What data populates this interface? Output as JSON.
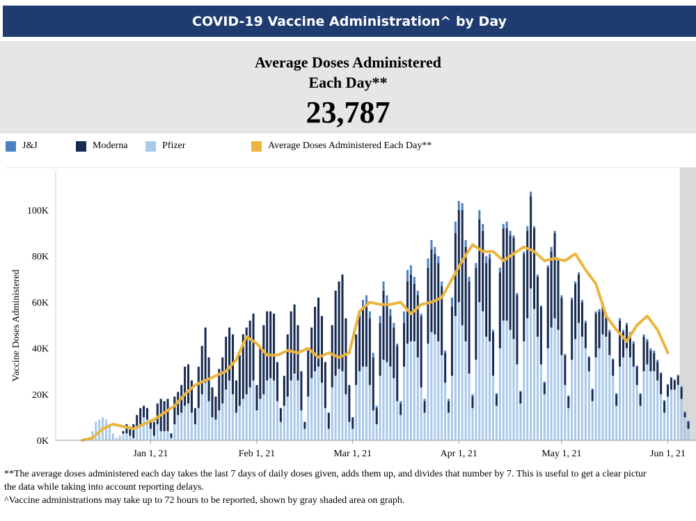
{
  "header": {
    "title": "COVID-19 Vaccine Administration^ by Day"
  },
  "kpi": {
    "label_line1": "Average Doses Administered",
    "label_line2": "Each Day**",
    "value": "23,787"
  },
  "legend": [
    {
      "label": "J&J",
      "color": "#4e80c1"
    },
    {
      "label": "Moderna",
      "color": "#172a50"
    },
    {
      "label": "Pfizer",
      "color": "#a9c8ea"
    },
    {
      "label": "Average Doses Administered Each Day**",
      "color": "#ebb53e"
    }
  ],
  "notes": {
    "line1": "**The average doses administered each day takes the last 7 days of daily doses given, adds them up, and divides that number by 7. This is useful to get a clear pictur",
    "line2": "the data while taking into account reporting delays.",
    "line3": "^Vaccine administrations may take up to 72 hours to be reported, shown by gray shaded area on graph."
  },
  "chart_data": {
    "type": "bar",
    "stacked": true,
    "title": "",
    "ylabel": "Vaccine Doses Administered",
    "xlabel": "",
    "ylim": [
      0,
      115000
    ],
    "ytick_values": [
      0,
      20000,
      40000,
      60000,
      80000,
      100000
    ],
    "ytick_labels": [
      "0K",
      "20K",
      "40K",
      "60K",
      "80K",
      "100K"
    ],
    "xtick_labels": [
      "Jan 1, 21",
      "Feb 1, 21",
      "Mar 1, 21",
      "Apr 1, 21",
      "May 1, 21",
      "Jun 1, 21"
    ],
    "xtick_day_index": [
      20,
      51,
      79,
      110,
      140,
      171
    ],
    "start_date": "Dec 12, 20",
    "reporting_delay_days": 3,
    "series_colors": {
      "pfizer": "#a9c8ea",
      "moderna": "#172a50",
      "jj": "#4e80c1",
      "avg": "#ebb53e"
    },
    "pfizer": [
      0,
      0,
      0,
      4000,
      8000,
      9000,
      10000,
      9000,
      7000,
      3000,
      1000,
      2000,
      3000,
      3000,
      2000,
      1000,
      5000,
      7000,
      10000,
      9000,
      5000,
      2000,
      7000,
      4000,
      4000,
      4000,
      1000,
      7000,
      11000,
      12000,
      15000,
      16000,
      12000,
      7000,
      14000,
      20000,
      25000,
      17000,
      10000,
      9000,
      13000,
      16000,
      22000,
      26000,
      20000,
      12000,
      15000,
      18000,
      20000,
      23000,
      26000,
      13000,
      18000,
      20000,
      26000,
      27000,
      26000,
      17000,
      8000,
      15000,
      19000,
      26000,
      29000,
      26000,
      13000,
      5000,
      19000,
      27000,
      30000,
      32000,
      25000,
      14000,
      5000,
      23000,
      28000,
      31000,
      30000,
      20000,
      8000,
      5000,
      24000,
      30000,
      32000,
      32000,
      24000,
      13000,
      7000,
      28000,
      35000,
      34000,
      32000,
      27000,
      17000,
      11000,
      32000,
      42000,
      43000,
      43000,
      36000,
      23000,
      12000,
      42000,
      47000,
      46000,
      43000,
      37000,
      25000,
      12000,
      28000,
      54000,
      60000,
      50000,
      43000,
      29000,
      14000,
      35000,
      60000,
      56000,
      45000,
      43000,
      28000,
      15000,
      40000,
      52000,
      52000,
      48000,
      44000,
      33000,
      16000,
      43000,
      53000,
      66000,
      57000,
      45000,
      33000,
      20000,
      40000,
      49000,
      53000,
      48000,
      37000,
      24000,
      14000,
      35000,
      44000,
      51000,
      45000,
      40000,
      30000,
      17000,
      36000,
      40000,
      46000,
      45000,
      37000,
      28000,
      15000,
      32000,
      36000,
      40000,
      36000,
      32000,
      24000,
      15000,
      30000,
      33000,
      30000,
      30000,
      26000,
      20000,
      12000,
      19000,
      22000,
      22000,
      24000,
      18000,
      10000,
      5000
    ],
    "moderna": [
      0,
      0,
      0,
      0,
      0,
      0,
      0,
      0,
      0,
      0,
      0,
      0,
      1000,
      4000,
      4000,
      6000,
      6000,
      7000,
      5000,
      5000,
      4000,
      6000,
      9000,
      14000,
      13000,
      14000,
      2000,
      12000,
      10000,
      12000,
      17000,
      17000,
      14000,
      7000,
      18000,
      21000,
      24000,
      19000,
      13000,
      10000,
      18000,
      20000,
      23000,
      23000,
      26000,
      14000,
      22000,
      28000,
      29000,
      29000,
      29000,
      11000,
      22000,
      30000,
      30000,
      29000,
      29000,
      17000,
      6000,
      13000,
      27000,
      30000,
      30000,
      24000,
      17000,
      3000,
      20000,
      22000,
      28000,
      30000,
      29000,
      20000,
      7000,
      27000,
      37000,
      38000,
      42000,
      33000,
      16000,
      5000,
      22000,
      24000,
      26000,
      27000,
      29000,
      23000,
      7000,
      23000,
      30000,
      25000,
      22000,
      22000,
      24000,
      5000,
      19000,
      27000,
      29000,
      25000,
      27000,
      31000,
      5000,
      33000,
      36000,
      35000,
      34000,
      30000,
      13000,
      5000,
      30000,
      36000,
      40000,
      50000,
      41000,
      40000,
      5000,
      40000,
      36000,
      35000,
      32000,
      36000,
      19000,
      5000,
      33000,
      40000,
      40000,
      41000,
      44000,
      30000,
      5000,
      38000,
      38000,
      40000,
      35000,
      26000,
      25000,
      5000,
      35000,
      33000,
      37000,
      30000,
      25000,
      13000,
      5000,
      26000,
      24000,
      21000,
      15000,
      11000,
      6000,
      5000,
      19000,
      16000,
      13000,
      9000,
      10000,
      7000,
      5000,
      20000,
      11000,
      10000,
      10000,
      10000,
      8000,
      5000,
      15000,
      10000,
      9000,
      8000,
      8000,
      9000,
      5000,
      5000,
      5000,
      4000,
      4000,
      5000,
      2000,
      3000
    ],
    "jj": [
      0,
      0,
      0,
      0,
      0,
      0,
      0,
      0,
      0,
      0,
      0,
      0,
      0,
      0,
      0,
      0,
      0,
      0,
      0,
      0,
      0,
      0,
      0,
      0,
      0,
      0,
      0,
      0,
      0,
      0,
      0,
      0,
      0,
      0,
      0,
      0,
      0,
      0,
      0,
      0,
      0,
      0,
      0,
      0,
      0,
      0,
      0,
      0,
      0,
      0,
      0,
      0,
      0,
      0,
      0,
      0,
      0,
      0,
      0,
      0,
      0,
      0,
      0,
      0,
      0,
      0,
      0,
      0,
      0,
      0,
      0,
      0,
      0,
      0,
      0,
      0,
      0,
      0,
      0,
      0,
      0,
      2000,
      3000,
      4000,
      3000,
      2000,
      1000,
      3000,
      4000,
      4000,
      3000,
      2000,
      1000,
      1000,
      5000,
      5000,
      4000,
      3000,
      2000,
      1000,
      1000,
      4000,
      4000,
      3000,
      3000,
      2000,
      1000,
      1000,
      4000,
      5000,
      4000,
      3000,
      3000,
      2000,
      1000,
      2000,
      4000,
      3000,
      3000,
      2000,
      1000,
      500,
      2000,
      2000,
      3000,
      2000,
      1000,
      1000,
      500,
      1000,
      2000,
      2000,
      1000,
      1000,
      500,
      500,
      1000,
      2000,
      1000,
      1000,
      1000,
      500,
      500,
      1000,
      1000,
      1000,
      1000,
      1000,
      500,
      500,
      1000,
      1000,
      1000,
      1000,
      1000,
      500,
      500,
      1000,
      1000,
      1000,
      1000,
      1000,
      500,
      500,
      1000,
      1000,
      1000,
      1000,
      1000,
      500,
      500,
      500,
      500,
      500,
      500,
      500,
      500,
      500
    ],
    "avg_x_day": [
      0,
      3,
      6,
      9,
      12,
      15,
      18,
      21,
      24,
      27,
      30,
      33,
      36,
      39,
      42,
      45,
      48,
      51,
      54,
      57,
      60,
      63,
      66,
      69,
      72,
      75,
      78,
      81,
      84,
      87,
      90,
      93,
      96,
      99,
      102,
      105,
      108,
      111,
      114,
      117,
      120,
      123,
      126,
      129,
      132,
      135,
      138,
      141,
      144,
      147,
      150,
      153,
      156,
      159,
      162,
      165,
      168,
      171
    ],
    "avg_values": [
      0,
      1000,
      5000,
      7000,
      6000,
      5000,
      7000,
      9000,
      12000,
      15000,
      20000,
      24000,
      26000,
      28000,
      30000,
      35000,
      45000,
      42000,
      37000,
      37000,
      39000,
      38000,
      40000,
      36000,
      38000,
      36000,
      38000,
      56000,
      60000,
      59000,
      59000,
      60000,
      55000,
      59000,
      60000,
      62000,
      70000,
      78000,
      85000,
      82000,
      82000,
      78000,
      81000,
      84000,
      82000,
      78000,
      79000,
      78000,
      81000,
      74000,
      68000,
      54000,
      48000,
      43000,
      50000,
      54000,
      48000,
      38000
    ]
  }
}
